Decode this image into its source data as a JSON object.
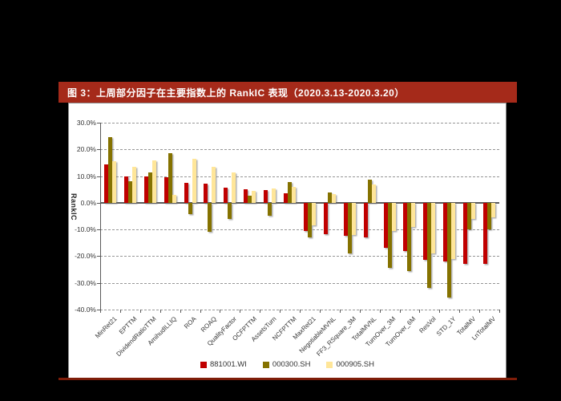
{
  "page": {
    "background_color": "#000000"
  },
  "figure": {
    "title": "图 3：上周部分因子在主要指数上的 RankIC 表现（2020.3.13-2020.3.20）",
    "title_bar_color": "#A52A1A",
    "bottom_rule_color": "#7E1D09",
    "panel_color": "#FFFFFF"
  },
  "chart_data": {
    "type": "bar",
    "title": "上周部分因子在主要指数上的 RankIC 表现（2020.3.13-2020.3.20）",
    "xlabel": "",
    "ylabel": "RankIC",
    "ylim": [
      -40,
      30
    ],
    "ytick_step": 10,
    "yticks": [
      "30.0%",
      "20.0%",
      "10.0%",
      "0.0%",
      "-10.0%",
      "-20.0%",
      "-30.0%",
      "-40.0%"
    ],
    "grid": "horizontal-dashed",
    "legend_position": "bottom-center",
    "categories": [
      "MinRet21",
      "EPTTM",
      "DividendRatioTTM",
      "AmihudILLIQ",
      "ROA",
      "ROAQ",
      "QualityFactor",
      "OCFPTTM",
      "AssetsTurn",
      "NCFPTTM",
      "MaxRet21",
      "NegotiableMVNL",
      "FF3_RSquare_3M",
      "TotalMVNL",
      "TurnOver_3M",
      "TurnOver_6M",
      "ResVol",
      "STD_1Y",
      "TotalMV",
      "LnTotalMV"
    ],
    "unit": "percent",
    "series": [
      {
        "name": "881001.WI",
        "color": "#C00000",
        "values": [
          14.5,
          10.0,
          10.0,
          9.5,
          7.5,
          7.2,
          5.7,
          5.0,
          4.7,
          3.7,
          -10.5,
          -11.8,
          -12.5,
          -13.0,
          -17.0,
          -18.0,
          -21.5,
          -22.0,
          -23.0,
          -23.0
        ]
      },
      {
        "name": "000300.SH",
        "color": "#857200",
        "values": [
          24.5,
          8.0,
          11.4,
          18.5,
          -4.3,
          -11.0,
          -6.0,
          2.7,
          -5.0,
          7.7,
          -13.0,
          4.0,
          -19.0,
          8.8,
          -24.5,
          -25.5,
          -32.0,
          -35.5,
          -10.0,
          -10.0
        ]
      },
      {
        "name": "000905.SH",
        "color": "#FFE699",
        "values": [
          15.5,
          13.5,
          15.8,
          3.0,
          16.5,
          13.5,
          11.5,
          4.4,
          5.5,
          6.0,
          -8.5,
          3.2,
          -12.2,
          7.0,
          -10.5,
          -9.0,
          -19.0,
          -21.0,
          -6.0,
          -5.5
        ]
      }
    ]
  }
}
